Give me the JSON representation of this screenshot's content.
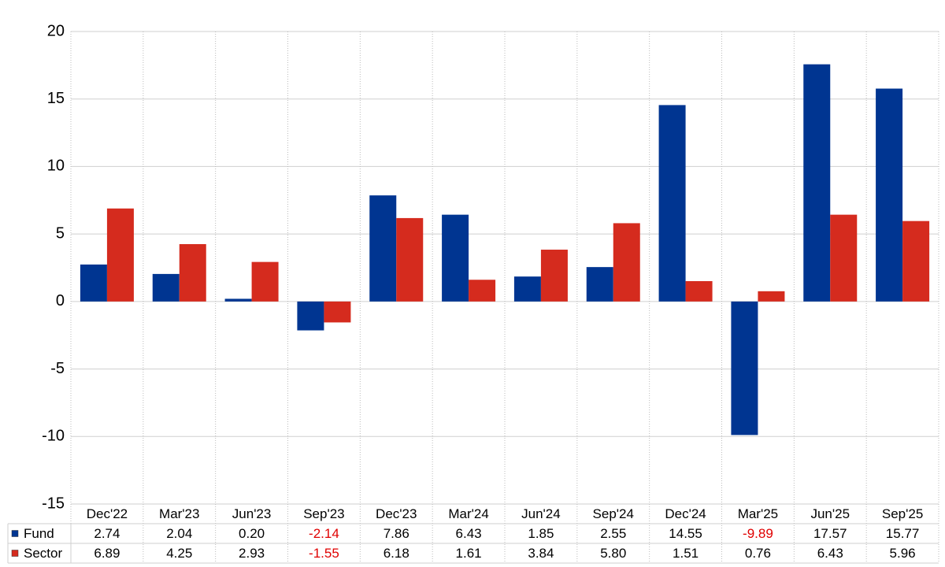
{
  "chart_data": {
    "type": "bar",
    "categories": [
      "Dec'22",
      "Mar'23",
      "Jun'23",
      "Sep'23",
      "Dec'23",
      "Mar'24",
      "Jun'24",
      "Sep'24",
      "Dec'24",
      "Mar'25",
      "Jun'25",
      "Sep'25"
    ],
    "series": [
      {
        "name": "Fund",
        "color": "#003591",
        "values": [
          2.74,
          2.04,
          0.2,
          -2.14,
          7.86,
          6.43,
          1.85,
          2.55,
          14.55,
          -9.89,
          17.57,
          15.77
        ],
        "value_labels": [
          "2.74",
          "2.04",
          "0.20",
          "-2.14",
          "7.86",
          "6.43",
          "1.85",
          "2.55",
          "14.55",
          "-9.89",
          "17.57",
          "15.77"
        ]
      },
      {
        "name": "Sector",
        "color": "#d52b1e",
        "values": [
          6.89,
          4.25,
          2.93,
          -1.55,
          6.18,
          1.61,
          3.84,
          5.8,
          1.51,
          0.76,
          6.43,
          5.96
        ],
        "value_labels": [
          "6.89",
          "4.25",
          "2.93",
          "-1.55",
          "6.18",
          "1.61",
          "3.84",
          "5.80",
          "1.51",
          "0.76",
          "6.43",
          "5.96"
        ]
      }
    ],
    "ylim": [
      -15,
      20
    ],
    "yticks": [
      -15,
      -10,
      -5,
      0,
      5,
      10,
      15,
      20
    ],
    "grid": true,
    "negative_label_color": "#e00000"
  }
}
